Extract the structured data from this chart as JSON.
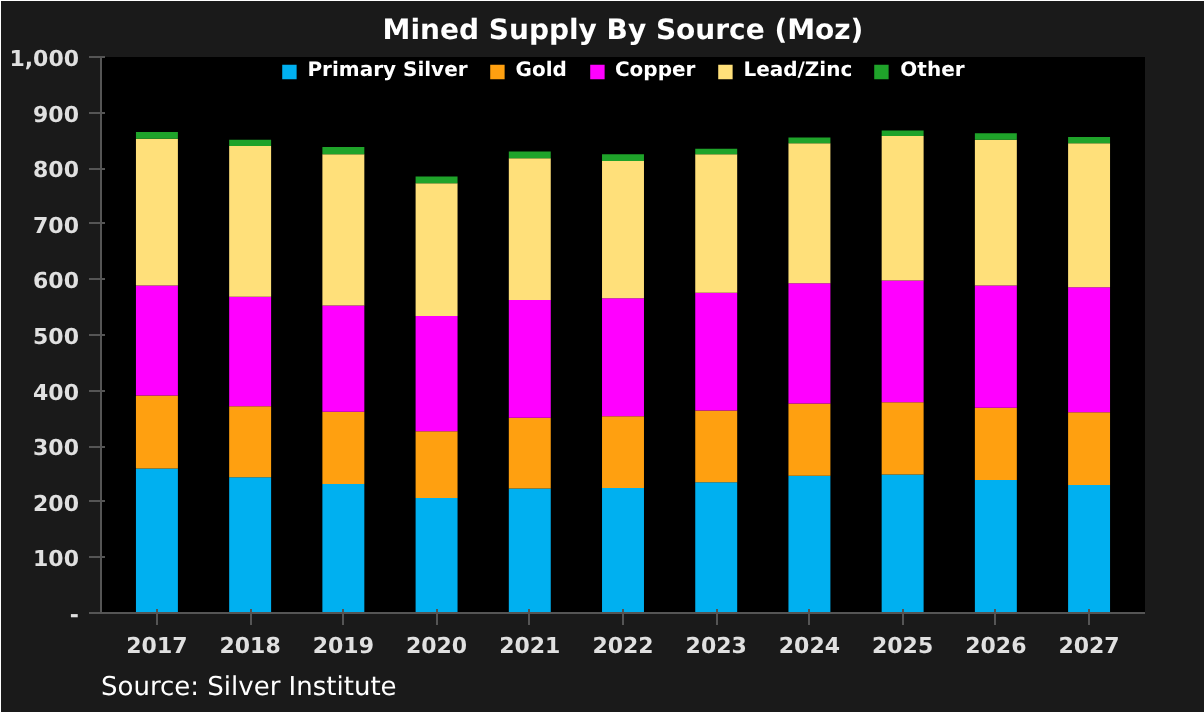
{
  "chart_data": {
    "type": "bar",
    "stacked": true,
    "title": "Mined Supply By Source (Moz)",
    "categories": [
      "2017",
      "2018",
      "2019",
      "2020",
      "2021",
      "2022",
      "2023",
      "2024",
      "2025",
      "2026",
      "2027"
    ],
    "series": [
      {
        "name": "Primary Silver",
        "color": "#00b0f0",
        "values": [
          260,
          244,
          232,
          207,
          224,
          225,
          235,
          247,
          249,
          239,
          230
        ]
      },
      {
        "name": "Gold",
        "color": "#ffa010",
        "values": [
          131,
          128,
          130,
          120,
          127,
          129,
          129,
          130,
          130,
          130,
          131
        ]
      },
      {
        "name": "Copper",
        "color": "#ff00ff",
        "values": [
          198,
          197,
          191,
          207,
          212,
          212,
          212,
          216,
          219,
          220,
          225
        ]
      },
      {
        "name": "Lead/Zinc",
        "color": "#ffe07a",
        "values": [
          264,
          271,
          272,
          239,
          255,
          247,
          249,
          252,
          260,
          262,
          259
        ]
      },
      {
        "name": "Other",
        "color": "#1fa32a",
        "values": [
          12,
          11,
          13,
          12,
          12,
          12,
          10,
          10,
          10,
          12,
          11
        ]
      }
    ],
    "ylim": [
      0,
      1000
    ],
    "yticks": [
      {
        "value": 0,
        "label": "-"
      },
      100,
      200,
      300,
      400,
      500,
      600,
      700,
      800,
      900,
      {
        "value": 1000,
        "label": "1,000"
      }
    ],
    "grid": false,
    "legend": "top",
    "annotations": [
      "Source: Silver Institute"
    ]
  }
}
